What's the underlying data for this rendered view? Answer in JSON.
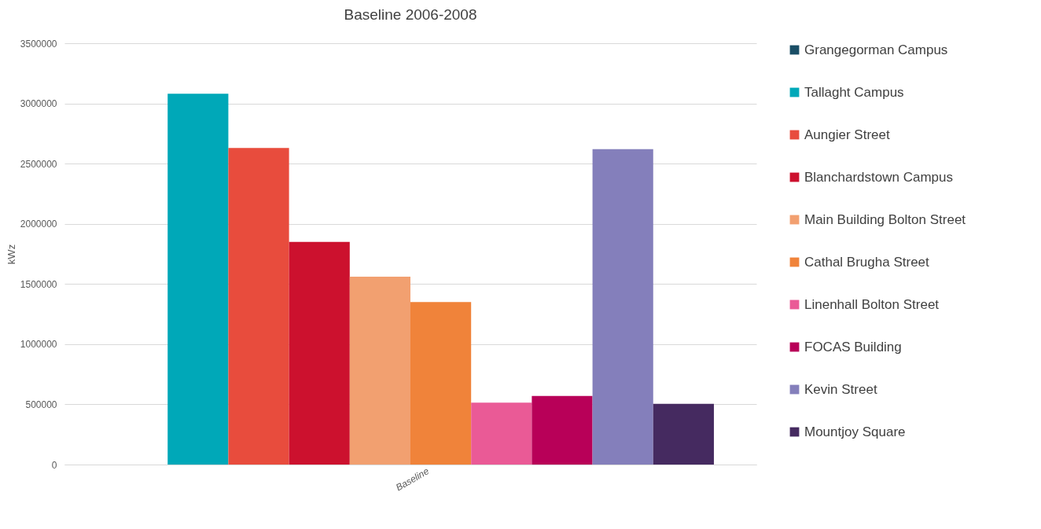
{
  "chart_data": {
    "type": "bar",
    "title": "Baseline 2006-2008",
    "ylabel": "kWz",
    "categories": [
      "Baseline"
    ],
    "series": [
      {
        "name": "Grangegorman Campus",
        "color": "#1a4e66",
        "values": [
          0
        ]
      },
      {
        "name": "Tallaght Campus",
        "color": "#00a8b8",
        "values": [
          3080000
        ]
      },
      {
        "name": "Aungier Street",
        "color": "#e84c3d",
        "values": [
          2630000
        ]
      },
      {
        "name": "Blanchardstown Campus",
        "color": "#cc112e",
        "values": [
          1850000
        ]
      },
      {
        "name": "Main Building Bolton Street",
        "color": "#f2a070",
        "values": [
          1560000
        ]
      },
      {
        "name": "Cathal Brugha Street",
        "color": "#f0833a",
        "values": [
          1350000
        ]
      },
      {
        "name": "Linenhall Bolton Street",
        "color": "#ea5a96",
        "values": [
          515000
        ]
      },
      {
        "name": "FOCAS Building",
        "color": "#b80058",
        "values": [
          570000
        ]
      },
      {
        "name": "Kevin Street",
        "color": "#847fbb",
        "values": [
          2620000
        ]
      },
      {
        "name": "Mountjoy Square",
        "color": "#452a60",
        "values": [
          505000
        ]
      }
    ],
    "ylim": [
      0,
      3500000
    ],
    "yticks": [
      0,
      500000,
      1000000,
      1500000,
      2000000,
      2500000,
      3000000,
      3500000
    ],
    "grid": "y",
    "legend": "right"
  }
}
